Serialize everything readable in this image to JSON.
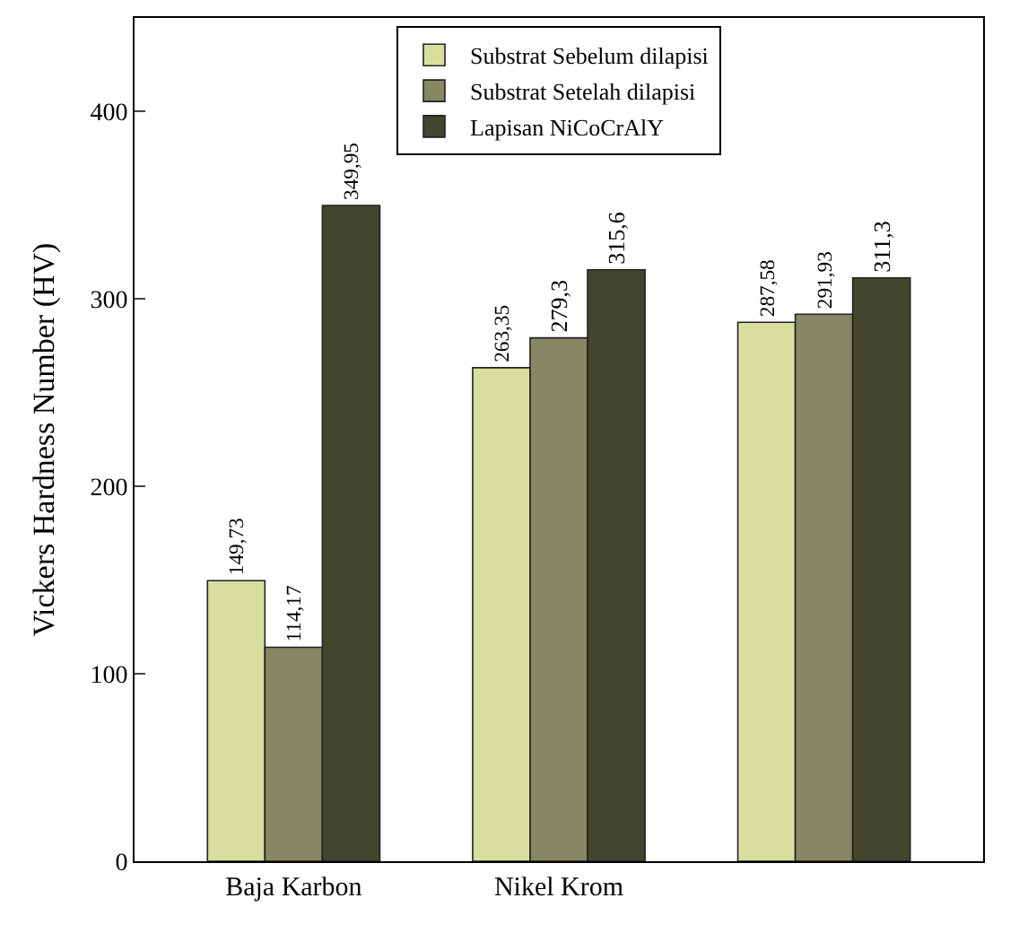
{
  "chart_data": {
    "type": "bar",
    "ylabel": "Vickers Hardness Number (HV)",
    "categories": [
      "Baja Karbon",
      "Nikel Krom",
      null
    ],
    "series": [
      {
        "name": "Substrat Sebelum dilapisi",
        "color": "#d8df9e",
        "values": [
          149.73,
          263.35,
          287.58
        ],
        "value_labels": [
          "149,73",
          "263,35",
          "287,58"
        ]
      },
      {
        "name": "Substrat Setelah dilapisi",
        "color": "#868763",
        "values": [
          114.17,
          279.3,
          291.93
        ],
        "value_labels": [
          "114,17",
          "279,3",
          "291,93"
        ]
      },
      {
        "name": "Lapisan NiCoCrAlY",
        "color": "#44452f",
        "values": [
          349.95,
          315.6,
          311.3
        ],
        "value_labels": [
          "349,95",
          "315,6",
          "311,3"
        ]
      }
    ],
    "ylim": [
      0,
      450
    ],
    "yticks": [
      0,
      100,
      200,
      300,
      400
    ],
    "legend": "top"
  }
}
